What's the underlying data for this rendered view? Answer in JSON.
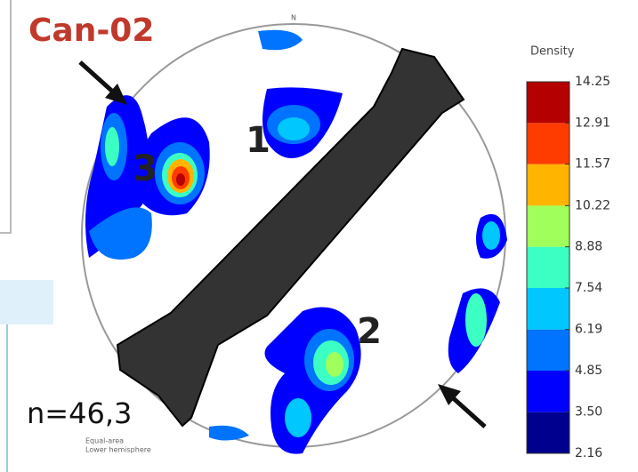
{
  "header": {
    "title": "Can-02"
  },
  "stereonet": {
    "north": "N",
    "labels": [
      "1",
      "2",
      "3"
    ],
    "count": "n=46,3",
    "projection": [
      "Equal-area",
      "Lower hemisphere"
    ]
  },
  "colorbar": {
    "label": "Density",
    "ticks": [
      2.16,
      {
        "value": 3.5,
        "label": "3.50"
      },
      4.85,
      6.19,
      7.54,
      8.88,
      10.22,
      11.57,
      12.91,
      14.25
    ],
    "colors": [
      "#00008f",
      "#0000ff",
      "#0073ff",
      "#00c8ff",
      "#3cffc3",
      "#a0ff5a",
      "#ffb400",
      "#ff3c00",
      "#b40000"
    ]
  }
}
